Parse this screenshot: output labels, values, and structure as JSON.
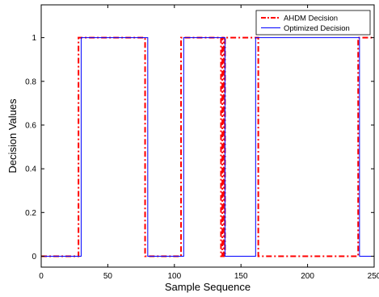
{
  "chart_data": {
    "type": "line",
    "xlabel": "Sample Sequence",
    "ylabel": "Decision Values",
    "xlim": [
      0,
      250
    ],
    "ylim": [
      -0.05,
      1.15
    ],
    "xticks": [
      0,
      50,
      100,
      150,
      200,
      250
    ],
    "xtick_labels": [
      "0",
      "50",
      "100",
      "150",
      "200",
      "250"
    ],
    "yticks": [
      0,
      0.2,
      0.4,
      0.6,
      0.8,
      1
    ],
    "ytick_labels": [
      "0",
      "0.2",
      "0.4",
      "0.6",
      "0.8",
      "1"
    ],
    "grid": false,
    "legend": "top-right",
    "series": [
      {
        "name": "AHDM Decision",
        "color": "#ff0000",
        "style": "dash-dot",
        "x": [
          0,
          28,
          28,
          78,
          78,
          105,
          105,
          135,
          135,
          136,
          136,
          137,
          137,
          138,
          138,
          163,
          163,
          238,
          238,
          250
        ],
        "y": [
          0,
          0,
          1,
          1,
          0,
          0,
          1,
          1,
          0,
          0,
          1,
          1,
          0,
          0,
          1,
          1,
          0,
          0,
          1,
          1
        ]
      },
      {
        "name": "Optimized Decision",
        "color": "#0000ff",
        "style": "solid",
        "x": [
          0,
          30,
          30,
          80,
          80,
          107,
          107,
          138,
          138,
          161,
          161,
          239,
          239,
          250
        ],
        "y": [
          0,
          0,
          1,
          1,
          0,
          0,
          1,
          1,
          0,
          0,
          1,
          1,
          0,
          0
        ]
      }
    ]
  }
}
